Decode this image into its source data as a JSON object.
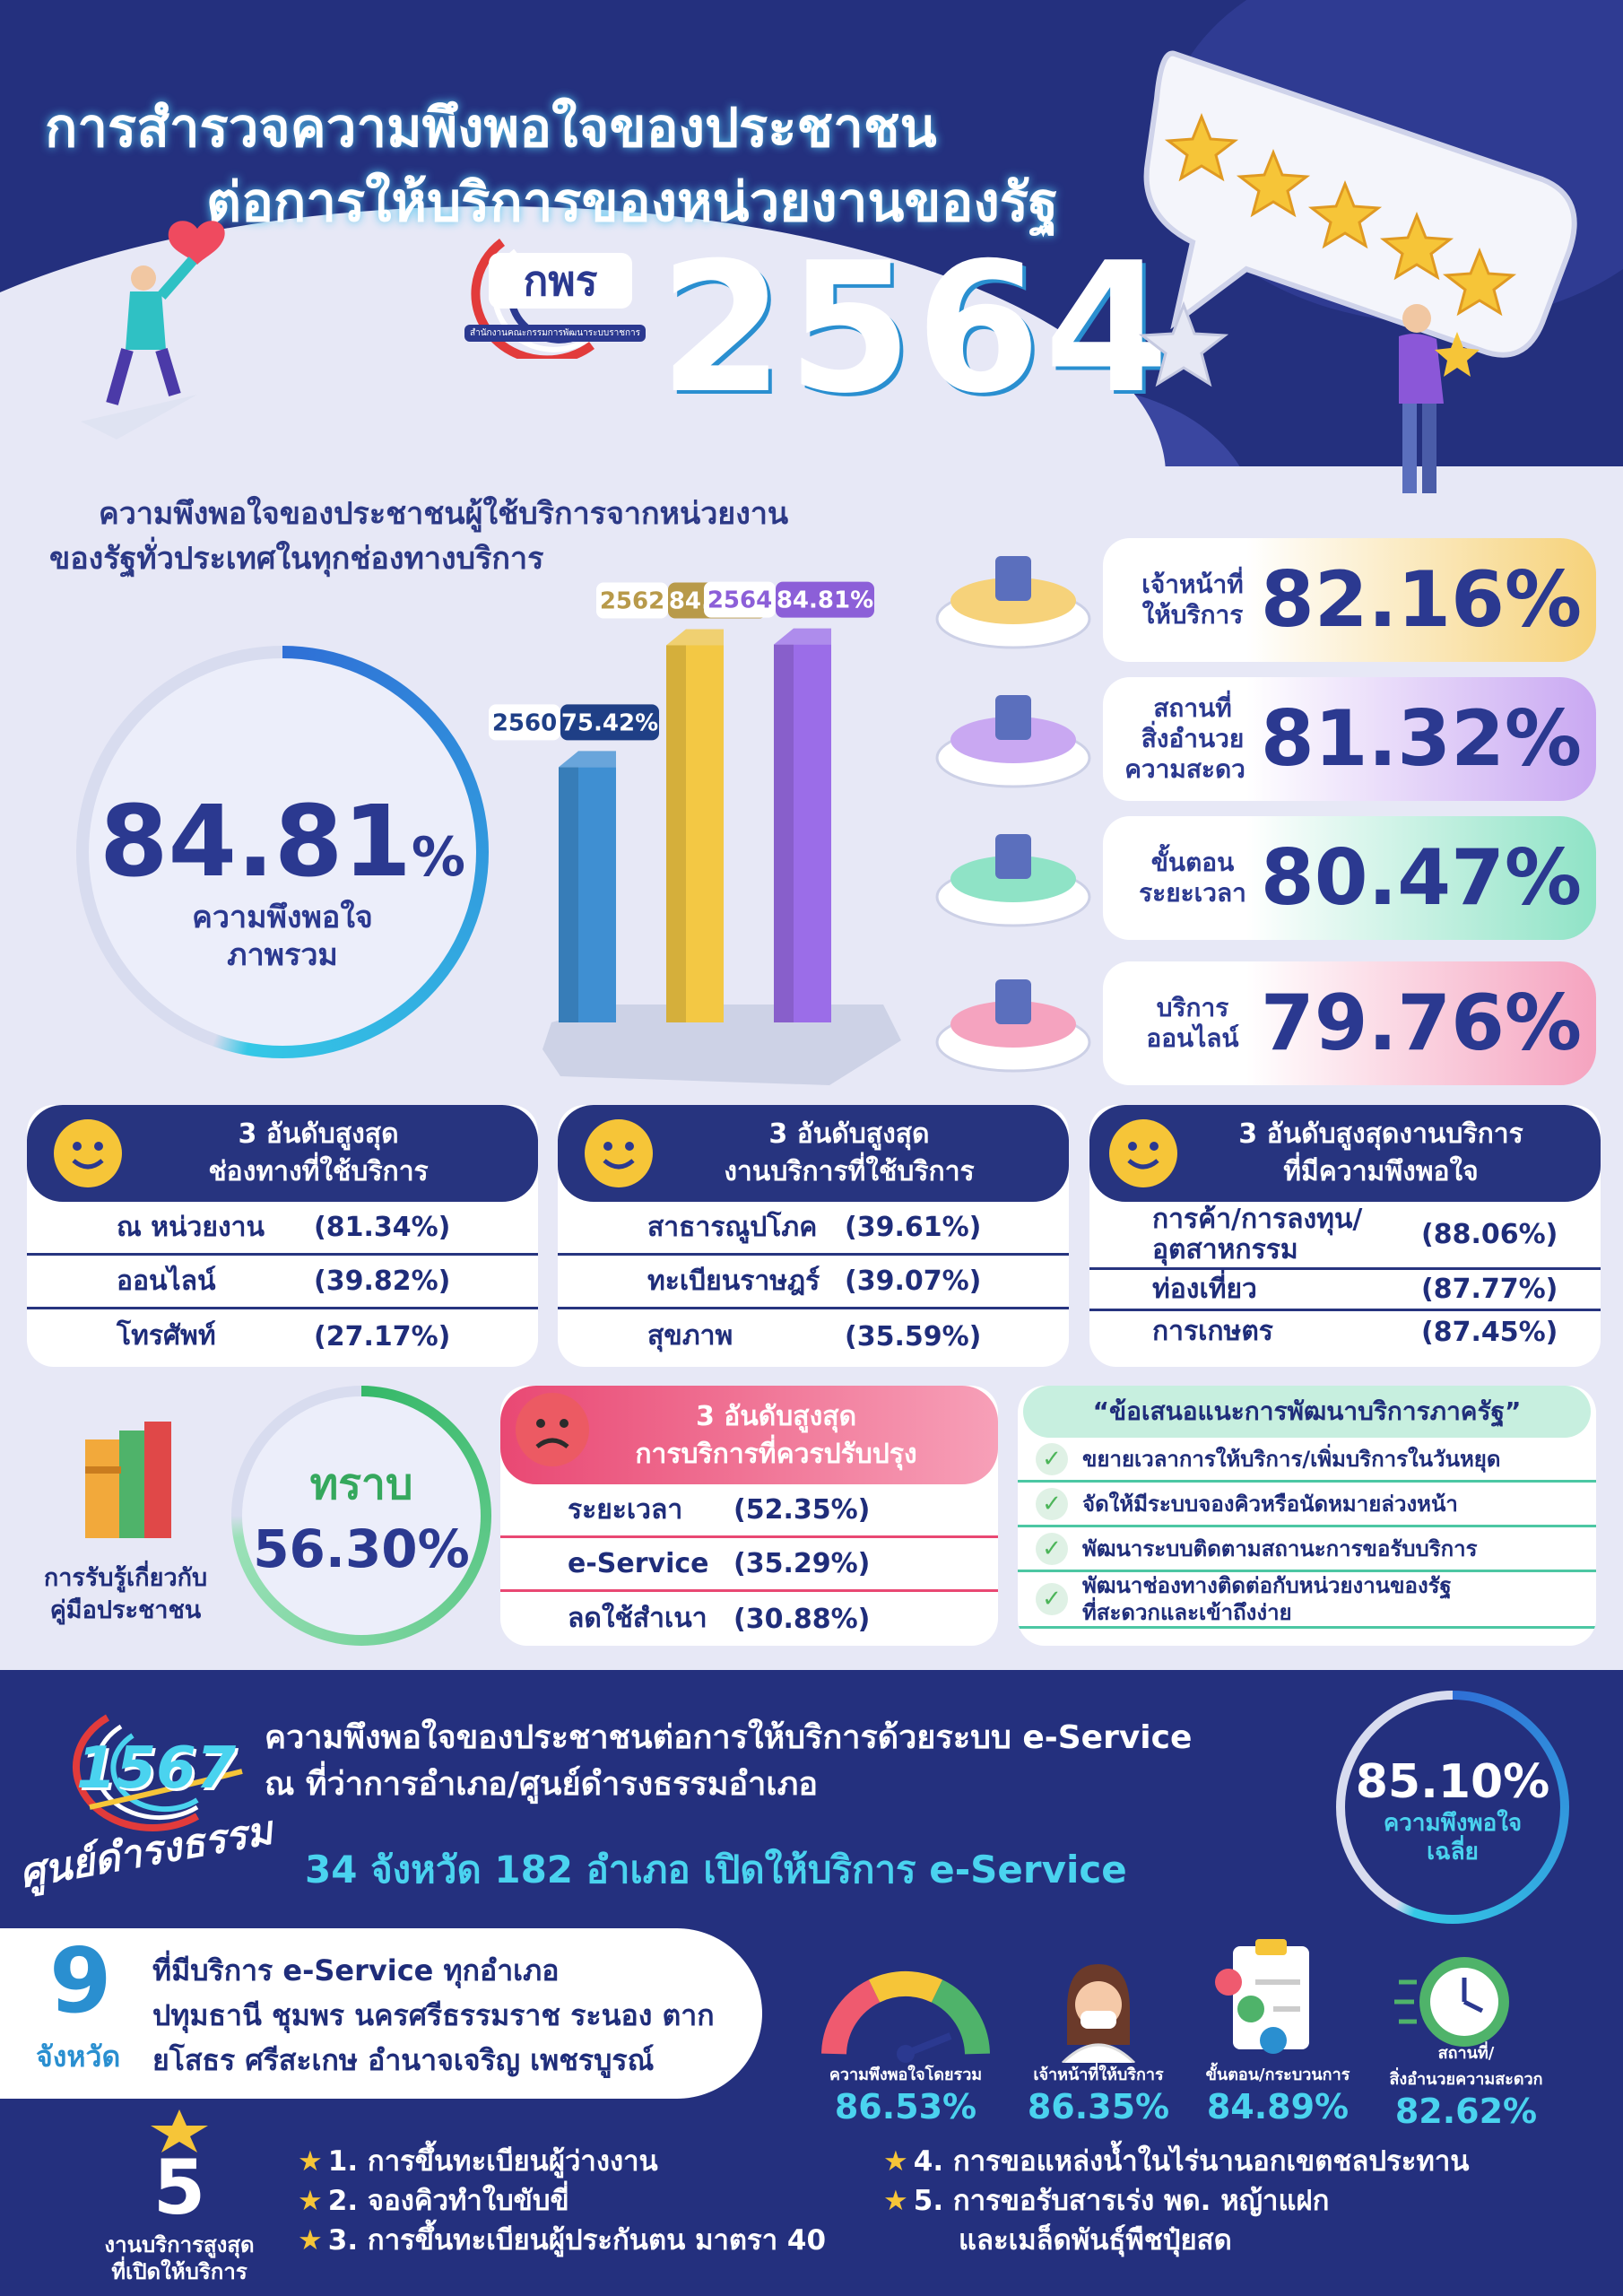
{
  "header": {
    "title_line1": "การสำรวจความพึงพอใจของประชาชน",
    "title_line2": "ต่อการให้บริการของหน่วยงานของรัฐ",
    "logo_text": "กพร",
    "logo_caption": "สำนักงานคณะกรรมการพัฒนาระบบราชการ",
    "year": "2564"
  },
  "overview": {
    "heading_line1": "ความพึงพอใจของประชาชนผู้ใช้บริการจากหน่วยงาน",
    "heading_line2": "ของรัฐทั่วประเทศในทุกช่องทางบริการ",
    "overall_value": "84.81",
    "overall_unit": "%",
    "overall_label_line1": "ความพึงพอใจ",
    "overall_label_line2": "ภาพรวม"
  },
  "chart_data": {
    "type": "bar",
    "categories": [
      "2560",
      "2562",
      "2564"
    ],
    "values": [
      75.42,
      84.75,
      84.81
    ],
    "value_labels": [
      "75.42%",
      "84.75%",
      "84.81%"
    ],
    "colors": [
      "#3f8fd2",
      "#f3c844",
      "#9b6de8"
    ],
    "label_colors": [
      "#1f3f86",
      "#b89a4a",
      "#8c5fd8"
    ]
  },
  "categories": [
    {
      "label": "เจ้าหน้าที่\nให้บริการ",
      "value": "82.16%",
      "color": "#f6d27a"
    },
    {
      "label": "สถานที่\nสิ่งอำนวย\nความสะดวก",
      "value": "81.32%",
      "color": "#c9a8f2"
    },
    {
      "label": "ขั้นตอน\nระยะเวลา",
      "value": "80.47%",
      "color": "#8fe3c6"
    },
    {
      "label": "บริการ\nออนไลน์",
      "value": "79.76%",
      "color": "#f5a3bf"
    }
  ],
  "top_channels": {
    "title_line1": "3 อันดับสูงสุด",
    "title_line2": "ช่องทางที่ใช้บริการ",
    "rows": [
      {
        "name": "ณ หน่วยงาน",
        "pct": "(81.34%)"
      },
      {
        "name": "ออนไลน์",
        "pct": "(39.82%)"
      },
      {
        "name": "โทรศัพท์",
        "pct": "(27.17%)"
      }
    ]
  },
  "top_services": {
    "title_line1": "3 อันดับสูงสุด",
    "title_line2": "งานบริการที่ใช้บริการ",
    "rows": [
      {
        "name": "สาธารณูปโภค",
        "pct": "(39.61%)"
      },
      {
        "name": "ทะเบียนราษฎร์",
        "pct": "(39.07%)"
      },
      {
        "name": "สุขภาพ",
        "pct": "(35.59%)"
      }
    ]
  },
  "top_satisfaction": {
    "title_line1": "3 อันดับสูงสุดงานบริการ",
    "title_line2": "ที่มีความพึงพอใจ",
    "rows": [
      {
        "name": "การค้า/การลงทุน/\nอุตสาหกรรม",
        "pct": "(88.06%)"
      },
      {
        "name": "ท่องเที่ยว",
        "pct": "(87.77%)"
      },
      {
        "name": "การเกษตร",
        "pct": "(87.45%)"
      }
    ]
  },
  "awareness": {
    "label_line1": "การรับรู้เกี่ยวกับ",
    "label_line2": "คู่มือประชาชน",
    "ring_label": "ทราบ",
    "ring_value": "56.30%",
    "ring_fraction": 0.563
  },
  "improve": {
    "title_line1": "3 อันดับสูงสุด",
    "title_line2": "การบริการที่ควรปรับปรุง",
    "rows": [
      {
        "name": "ระยะเวลา",
        "pct": "(52.35%)"
      },
      {
        "name": "e-Service",
        "pct": "(35.29%)"
      },
      {
        "name": "ลดใช้สำเนา",
        "pct": "(30.88%)"
      }
    ]
  },
  "suggestions": {
    "title": "“ข้อเสนอแนะการพัฒนาบริการภาครัฐ”",
    "items": [
      "ขยายเวลาการให้บริการ/เพิ่มบริการในวันหยุด",
      "จัดให้มีระบบจองคิวหรือนัดหมายล่วงหน้า",
      "พัฒนาระบบติดตามสถานะการขอรับบริการ",
      "พัฒนาช่องทางติดต่อกับหน่วยงานของรัฐ\nที่สะดวกและเข้าถึงง่าย"
    ]
  },
  "eservice": {
    "logo_number": "1567",
    "logo_script": "ศูนย์ดำรงธรรม",
    "title_line1": "ความพึงพอใจของประชาชนต่อการให้บริการด้วยระบบ e-Service",
    "title_line2": "ณ ที่ว่าการอำเภอ/ศูนย์ดำรงธรรมอำเภอ",
    "headline": "34 จังหวัด 182 อำเภอ เปิดให้บริการ e-Service",
    "avg_value": "85.10%",
    "avg_label_line1": "ความพึงพอใจ",
    "avg_label_line2": "เฉลี่ย",
    "avg_fraction": 0.851
  },
  "provinces": {
    "count": "9",
    "unit": "จังหวัด",
    "line1": "ที่มีบริการ e-Service ทุกอำเภอ",
    "line2": "ปทุมธานี ชุมพร นครศรีธรรมราช ระนอง ตาก",
    "line3": "ยโสธร ศรีสะเกษ อำนาจเจริญ เพชรบูรณ์"
  },
  "stats": [
    {
      "label": "ความพึงพอใจโดยรวม",
      "value": "86.53%",
      "icon": "gauge-icon"
    },
    {
      "label": "เจ้าหน้าที่ให้บริการ",
      "value": "86.35%",
      "icon": "staff-icon"
    },
    {
      "label": "ขั้นตอน/กระบวนการ",
      "value": "84.89%",
      "icon": "checklist-icon"
    },
    {
      "label": "สถานที่/\nสิ่งอำนวยความสะดวก",
      "value": "82.62%",
      "icon": "clock-icon"
    }
  ],
  "top5": {
    "count": "5",
    "label_line1": "งานบริการสูงสุด",
    "label_line2": "ที่เปิดให้บริการ",
    "items": [
      "1. การขึ้นทะเบียนผู้ว่างงาน",
      "2. จองคิวทำใบขับขี่",
      "3. การขึ้นทะเบียนผู้ประกันตน มาตรา 40",
      "4. การขอแหล่งน้ำในไร่นานอกเขตชลประทาน",
      "5. การขอรับสารเร่ง พด. หญ้าแฝก"
    ],
    "item5_cont": "และเมล็ดพันธุ์พืชปุ๋ยสด"
  }
}
